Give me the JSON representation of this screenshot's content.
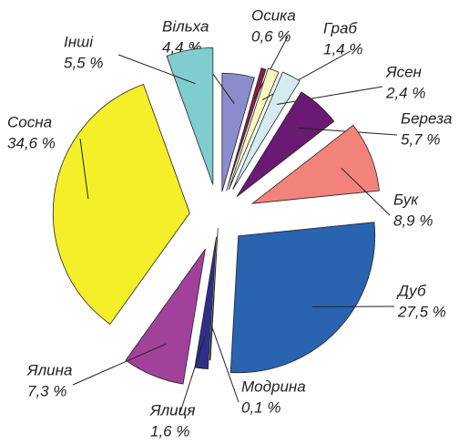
{
  "chart_data": {
    "type": "pie",
    "categories": [
      "Вільха",
      "Осика",
      "Граб",
      "Ясен",
      "Береза",
      "Бук",
      "Дуб",
      "Модрина",
      "Ялиця",
      "Ялина",
      "Сосна",
      "Інші"
    ],
    "values": [
      4.4,
      0.6,
      1.4,
      2.4,
      5.7,
      8.9,
      27.5,
      0.1,
      1.6,
      7.3,
      34.6,
      5.5
    ],
    "value_labels": [
      "4,4 %",
      "0,6 %",
      "1,4 %",
      "2,4 %",
      "5,7 %",
      "8,9 %",
      "27,5 %",
      "0,1 %",
      "1,6 %",
      "7,3 %",
      "34,6 %",
      "5,5 %"
    ],
    "colors": [
      "#8b8ccc",
      "#8a1f4a",
      "#fdf6c0",
      "#d4ecf0",
      "#6a1a72",
      "#f3837a",
      "#2a63b0",
      "#e4e4e4",
      "#2e2f8c",
      "#a2419a",
      "#f5ef2a",
      "#7fcdcf"
    ]
  }
}
